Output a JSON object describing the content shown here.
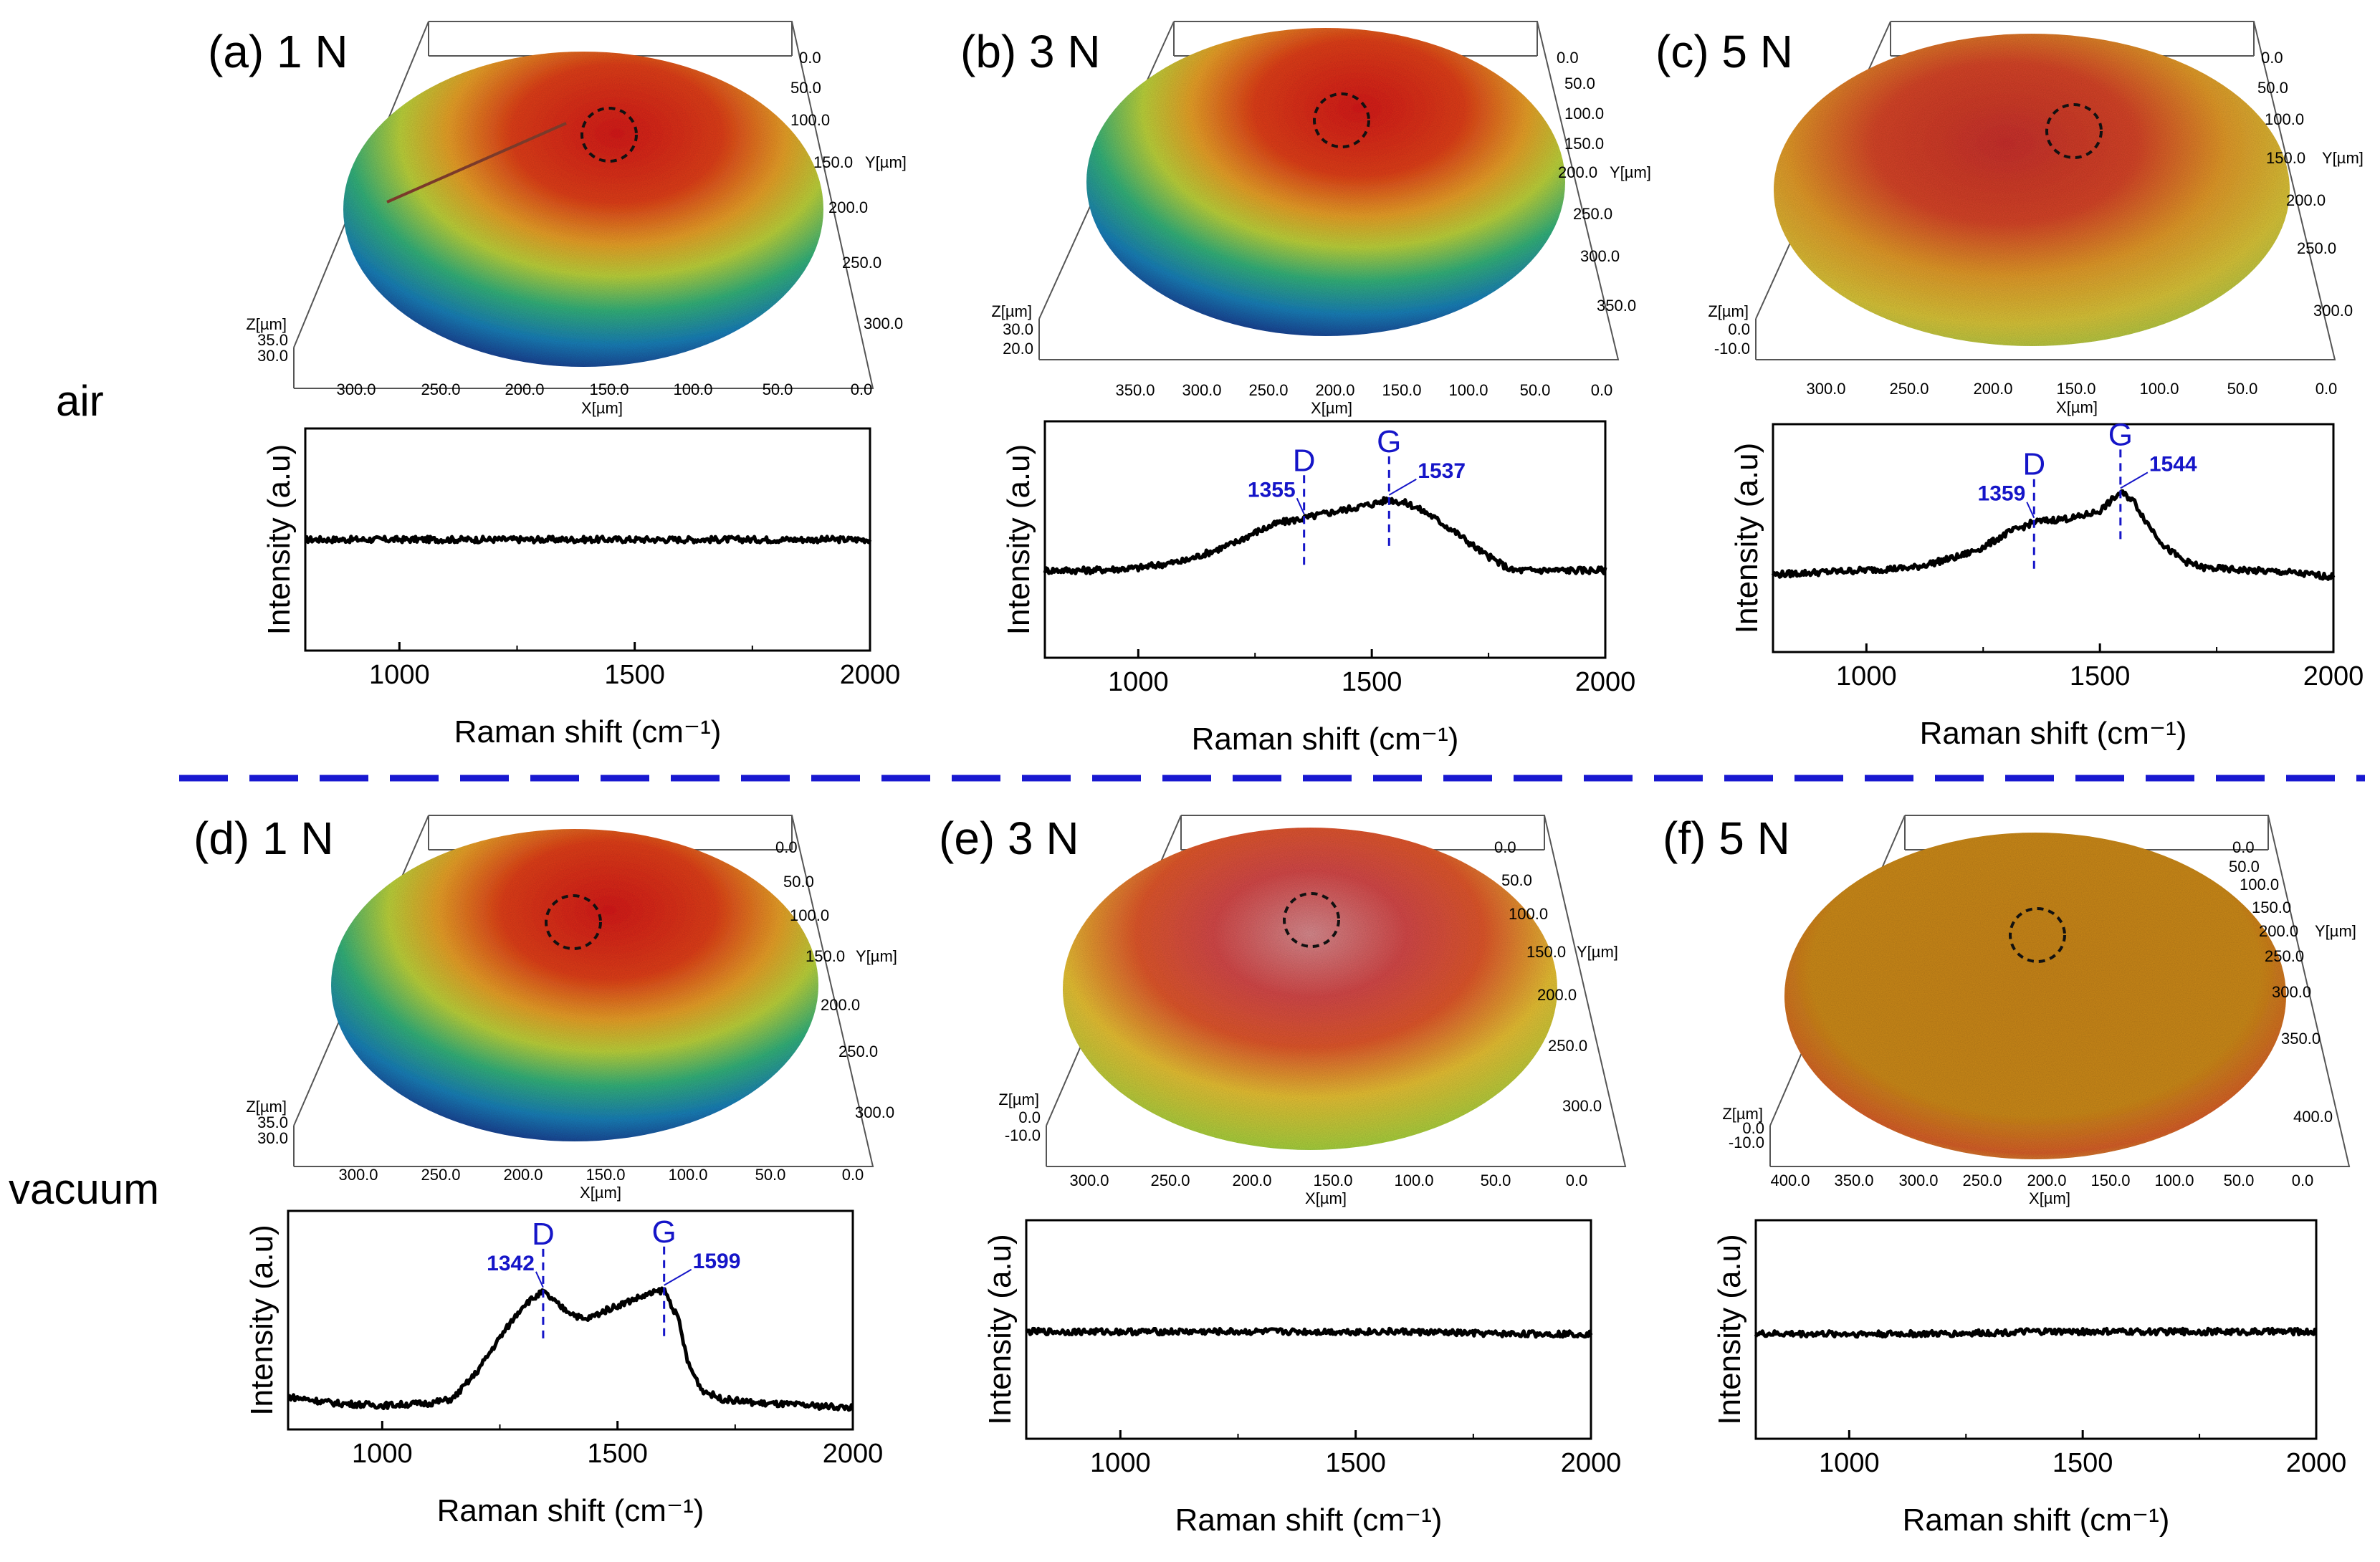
{
  "figure": {
    "row_labels": [
      "air",
      "vacuum"
    ],
    "colors": {
      "spectrum": "#000000",
      "annotation": "#1515c8",
      "divider": "#1818d0",
      "axis": "#000000",
      "frame": "#555555"
    }
  },
  "surface_maps": [
    {
      "id": "a",
      "title": "(a) 1 N",
      "x_ticks": [
        "300.0",
        "250.0",
        "200.0",
        "150.0",
        "100.0",
        "50.0",
        "0.0"
      ],
      "y_ticks": [
        "0.0",
        "50.0",
        "100.0",
        "150.0",
        "200.0",
        "250.0",
        "300.0"
      ],
      "z_ticks": [
        "35.0",
        "30.0"
      ],
      "xlabel": "X[µm]",
      "ylabel": "Y[µm]",
      "zlabel": "Z[µm]",
      "y_label_after": "150.0"
    },
    {
      "id": "b",
      "title": "(b) 3 N",
      "x_ticks": [
        "350.0",
        "300.0",
        "250.0",
        "200.0",
        "150.0",
        "100.0",
        "50.0",
        "0.0"
      ],
      "y_ticks": [
        "0.0",
        "50.0",
        "100.0",
        "150.0",
        "200.0",
        "250.0",
        "300.0",
        "350.0"
      ],
      "z_ticks": [
        "30.0",
        "20.0"
      ],
      "xlabel": "X[µm]",
      "ylabel": "Y[µm]",
      "zlabel": "Z[µm]",
      "y_label_after": "200.0"
    },
    {
      "id": "c",
      "title": "(c) 5 N",
      "x_ticks": [
        "300.0",
        "250.0",
        "200.0",
        "150.0",
        "100.0",
        "50.0",
        "0.0"
      ],
      "y_ticks": [
        "0.0",
        "50.0",
        "100.0",
        "150.0",
        "200.0",
        "250.0",
        "300.0"
      ],
      "z_ticks": [
        "0.0",
        "-10.0"
      ],
      "xlabel": "X[µm]",
      "ylabel": "Y[µm]",
      "zlabel": "Z[µm]",
      "y_label_after": "150.0"
    },
    {
      "id": "d",
      "title": "(d) 1 N",
      "x_ticks": [
        "300.0",
        "250.0",
        "200.0",
        "150.0",
        "100.0",
        "50.0",
        "0.0"
      ],
      "y_ticks": [
        "0.0",
        "50.0",
        "100.0",
        "150.0",
        "200.0",
        "250.0",
        "300.0"
      ],
      "z_ticks": [
        "35.0",
        "30.0"
      ],
      "xlabel": "X[µm]",
      "ylabel": "Y[µm]",
      "zlabel": "Z[µm]",
      "y_label_after": "150.0"
    },
    {
      "id": "e",
      "title": "(e) 3 N",
      "x_ticks": [
        "300.0",
        "250.0",
        "200.0",
        "150.0",
        "100.0",
        "50.0",
        "0.0"
      ],
      "y_ticks": [
        "0.0",
        "50.0",
        "100.0",
        "150.0",
        "200.0",
        "250.0",
        "300.0"
      ],
      "z_ticks": [
        "0.0",
        "-10.0"
      ],
      "xlabel": "X[µm]",
      "ylabel": "Y[µm]",
      "zlabel": "Z[µm]",
      "y_label_after": "150.0"
    },
    {
      "id": "f",
      "title": "(f) 5 N",
      "x_ticks": [
        "400.0",
        "350.0",
        "300.0",
        "250.0",
        "200.0",
        "150.0",
        "100.0",
        "50.0",
        "0.0"
      ],
      "y_ticks": [
        "0.0",
        "50.0",
        "100.0",
        "150.0",
        "200.0",
        "250.0",
        "300.0",
        "350.0",
        "400.0"
      ],
      "z_ticks": [
        "0.0",
        "-10.0"
      ],
      "xlabel": "X[µm]",
      "ylabel": "Y[µm]",
      "zlabel": "Z[µm]",
      "y_label_after": "200.0"
    }
  ],
  "chart_data": [
    {
      "id": "a",
      "type": "line",
      "title": "",
      "xlabel": "Raman shift (cm⁻¹)",
      "ylabel": "Intensity (a.u)",
      "xlim": [
        800,
        2000
      ],
      "ylim": [
        0,
        1
      ],
      "x_ticks": [
        1000,
        1500,
        2000
      ],
      "series": [
        {
          "name": "1 N air",
          "x": [
            800,
            1000,
            1200,
            1400,
            1600,
            1800,
            2000
          ],
          "y": [
            0.5,
            0.5,
            0.5,
            0.5,
            0.5,
            0.5,
            0.5
          ]
        }
      ],
      "peaks": []
    },
    {
      "id": "b",
      "type": "line",
      "title": "",
      "xlabel": "Raman shift (cm⁻¹)",
      "ylabel": "Intensity (a.u)",
      "xlim": [
        800,
        2000
      ],
      "ylim": [
        0,
        1
      ],
      "x_ticks": [
        1000,
        1500,
        2000
      ],
      "series": [
        {
          "name": "3 N air",
          "x": [
            800,
            900,
            1000,
            1100,
            1200,
            1250,
            1300,
            1355,
            1400,
            1450,
            1500,
            1537,
            1580,
            1620,
            1680,
            1740,
            1800,
            1850,
            1900,
            2000
          ],
          "y": [
            0.37,
            0.37,
            0.38,
            0.41,
            0.48,
            0.53,
            0.57,
            0.59,
            0.61,
            0.63,
            0.65,
            0.67,
            0.65,
            0.61,
            0.53,
            0.44,
            0.37,
            0.37,
            0.37,
            0.37
          ]
        }
      ],
      "peaks": [
        {
          "band": "D",
          "value": "1355",
          "x": 1355
        },
        {
          "band": "G",
          "value": "1537",
          "x": 1537
        }
      ]
    },
    {
      "id": "c",
      "type": "line",
      "title": "",
      "xlabel": "Raman shift (cm⁻¹)",
      "ylabel": "Intensity (a.u)",
      "xlim": [
        800,
        2000
      ],
      "ylim": [
        0,
        1
      ],
      "x_ticks": [
        1000,
        1500,
        2000
      ],
      "series": [
        {
          "name": "5 N air",
          "x": [
            800,
            900,
            1000,
            1100,
            1200,
            1250,
            1300,
            1359,
            1400,
            1450,
            1500,
            1544,
            1570,
            1600,
            1640,
            1680,
            1720,
            1800,
            1900,
            2000
          ],
          "y": [
            0.34,
            0.35,
            0.36,
            0.37,
            0.42,
            0.46,
            0.52,
            0.57,
            0.58,
            0.59,
            0.62,
            0.7,
            0.67,
            0.57,
            0.46,
            0.4,
            0.37,
            0.36,
            0.35,
            0.33
          ]
        }
      ],
      "peaks": [
        {
          "band": "D",
          "value": "1359",
          "x": 1359
        },
        {
          "band": "G",
          "value": "1544",
          "x": 1544
        }
      ]
    },
    {
      "id": "d",
      "type": "line",
      "title": "",
      "xlabel": "Raman shift (cm⁻¹)",
      "ylabel": "Intensity (a.u)",
      "xlim": [
        800,
        2000
      ],
      "ylim": [
        0,
        1
      ],
      "x_ticks": [
        1000,
        1500,
        2000
      ],
      "series": [
        {
          "name": "1 N vacuum",
          "x": [
            800,
            900,
            1000,
            1100,
            1150,
            1200,
            1250,
            1300,
            1342,
            1380,
            1430,
            1480,
            1540,
            1599,
            1630,
            1650,
            1680,
            1720,
            1800,
            1900,
            2000
          ],
          "y": [
            0.15,
            0.12,
            0.11,
            0.12,
            0.14,
            0.26,
            0.42,
            0.57,
            0.63,
            0.56,
            0.5,
            0.55,
            0.6,
            0.64,
            0.5,
            0.3,
            0.18,
            0.14,
            0.12,
            0.11,
            0.1
          ]
        }
      ],
      "peaks": [
        {
          "band": "D",
          "value": "1342",
          "x": 1342
        },
        {
          "band": "G",
          "value": "1599",
          "x": 1599
        }
      ]
    },
    {
      "id": "e",
      "type": "line",
      "title": "",
      "xlabel": "Raman shift (cm⁻¹)",
      "ylabel": "Intensity (a.u)",
      "xlim": [
        800,
        2000
      ],
      "ylim": [
        0,
        1
      ],
      "x_ticks": [
        1000,
        1500,
        2000
      ],
      "series": [
        {
          "name": "3 N vacuum",
          "x": [
            800,
            1000,
            1200,
            1400,
            1600,
            1800,
            2000
          ],
          "y": [
            0.49,
            0.49,
            0.49,
            0.49,
            0.49,
            0.48,
            0.48
          ]
        }
      ],
      "peaks": []
    },
    {
      "id": "f",
      "type": "line",
      "title": "",
      "xlabel": "Raman shift (cm⁻¹)",
      "ylabel": "Intensity (a.u)",
      "xlim": [
        800,
        2000
      ],
      "ylim": [
        0,
        1
      ],
      "x_ticks": [
        1000,
        1500,
        2000
      ],
      "series": [
        {
          "name": "5 N vacuum",
          "x": [
            800,
            1000,
            1200,
            1400,
            1600,
            1800,
            2000
          ],
          "y": [
            0.48,
            0.48,
            0.48,
            0.49,
            0.49,
            0.49,
            0.49
          ]
        }
      ],
      "peaks": []
    }
  ]
}
